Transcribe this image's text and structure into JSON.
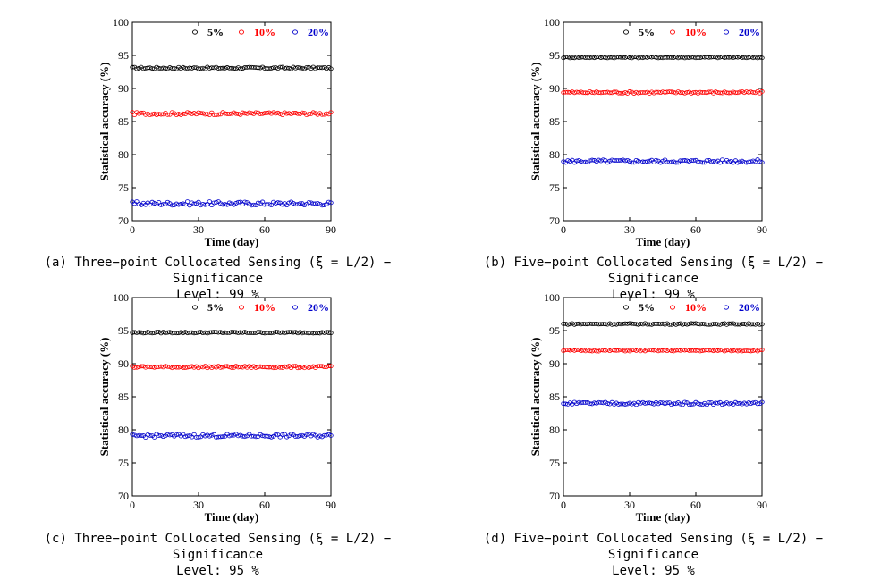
{
  "chart_data": [
    {
      "type": "scatter",
      "caption": "(a) Three−point Collocated Sensing (ξ = L/2) − Significance\nLevel: 99 %",
      "xlabel": "Time (day)",
      "ylabel": "Statistical accuracy (%)",
      "xlim": [
        0,
        90
      ],
      "ylim": [
        70,
        100
      ],
      "xticks": [
        0,
        30,
        60,
        90
      ],
      "yticks": [
        70,
        75,
        80,
        85,
        90,
        95,
        100
      ],
      "grid": false,
      "legend": "top",
      "series": [
        {
          "name": "5%",
          "color": "#000000",
          "base": 93.1,
          "jitter": 0.15
        },
        {
          "name": "10%",
          "color": "#ff0000",
          "base": 86.2,
          "jitter": 0.2
        },
        {
          "name": "20%",
          "color": "#0000cc",
          "base": 72.6,
          "jitter": 0.3
        }
      ]
    },
    {
      "type": "scatter",
      "caption": "(b) Five−point Collocated Sensing (ξ = L/2) − Significance\nLevel: 99 %",
      "xlabel": "Time (day)",
      "ylabel": "Statistical accuracy (%)",
      "xlim": [
        0,
        90
      ],
      "ylim": [
        70,
        100
      ],
      "xticks": [
        0,
        30,
        60,
        90
      ],
      "yticks": [
        70,
        75,
        80,
        85,
        90,
        95,
        100
      ],
      "grid": false,
      "legend": "top",
      "series": [
        {
          "name": "5%",
          "color": "#000000",
          "base": 94.7,
          "jitter": 0.1
        },
        {
          "name": "10%",
          "color": "#ff0000",
          "base": 89.4,
          "jitter": 0.15
        },
        {
          "name": "20%",
          "color": "#0000cc",
          "base": 79.0,
          "jitter": 0.25
        }
      ]
    },
    {
      "type": "scatter",
      "caption": "(c) Three−point Collocated Sensing (ξ = L/2) − Significance\nLevel: 95 %",
      "xlabel": "Time (day)",
      "ylabel": "Statistical accuracy (%)",
      "xlim": [
        0,
        90
      ],
      "ylim": [
        70,
        100
      ],
      "xticks": [
        0,
        30,
        60,
        90
      ],
      "yticks": [
        70,
        75,
        80,
        85,
        90,
        95,
        100
      ],
      "grid": false,
      "legend": "top",
      "series": [
        {
          "name": "5%",
          "color": "#000000",
          "base": 94.7,
          "jitter": 0.1
        },
        {
          "name": "10%",
          "color": "#ff0000",
          "base": 89.5,
          "jitter": 0.15
        },
        {
          "name": "20%",
          "color": "#0000cc",
          "base": 79.1,
          "jitter": 0.25
        }
      ]
    },
    {
      "type": "scatter",
      "caption": "(d) Five−point Collocated Sensing (ξ = L/2) − Significance\nLevel: 95 %",
      "xlabel": "Time (day)",
      "ylabel": "Statistical accuracy (%)",
      "xlim": [
        0,
        90
      ],
      "ylim": [
        70,
        100
      ],
      "xticks": [
        0,
        30,
        60,
        90
      ],
      "yticks": [
        70,
        75,
        80,
        85,
        90,
        95,
        100
      ],
      "grid": false,
      "legend": "top",
      "series": [
        {
          "name": "5%",
          "color": "#000000",
          "base": 96.0,
          "jitter": 0.1
        },
        {
          "name": "10%",
          "color": "#ff0000",
          "base": 92.0,
          "jitter": 0.12
        },
        {
          "name": "20%",
          "color": "#0000cc",
          "base": 84.0,
          "jitter": 0.2
        }
      ]
    }
  ]
}
